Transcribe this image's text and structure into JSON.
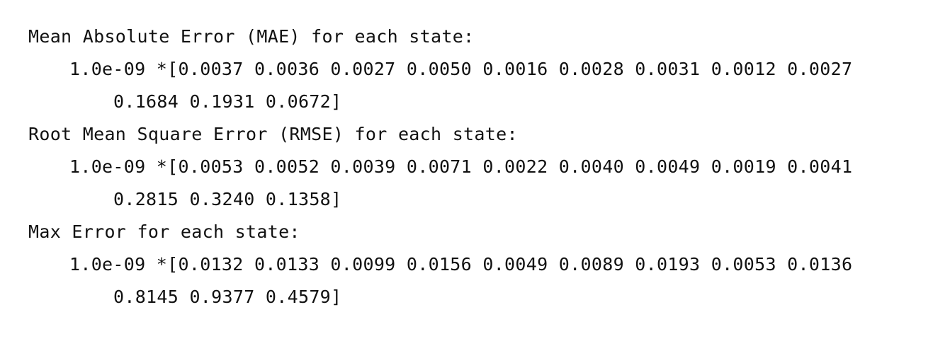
{
  "sections": [
    {
      "heading": "Mean Absolute Error (MAE) for each state:",
      "values_line": "1.0e-09 *[0.0037 0.0036 0.0027 0.0050 0.0016 0.0028 0.0031 0.0012 0.0027",
      "continuation_line": "0.1684 0.1931 0.0672]"
    },
    {
      "heading": "Root Mean Square Error (RMSE) for each state:",
      "values_line": "1.0e-09 *[0.0053 0.0052 0.0039 0.0071 0.0022 0.0040 0.0049 0.0019 0.0041",
      "continuation_line": "0.2815 0.3240 0.1358]"
    },
    {
      "heading": "Max Error for each state:",
      "values_line": "1.0e-09 *[0.0132 0.0133 0.0099 0.0156 0.0049 0.0089 0.0193 0.0053 0.0136",
      "continuation_line": "0.8145 0.9377 0.4579]"
    }
  ]
}
